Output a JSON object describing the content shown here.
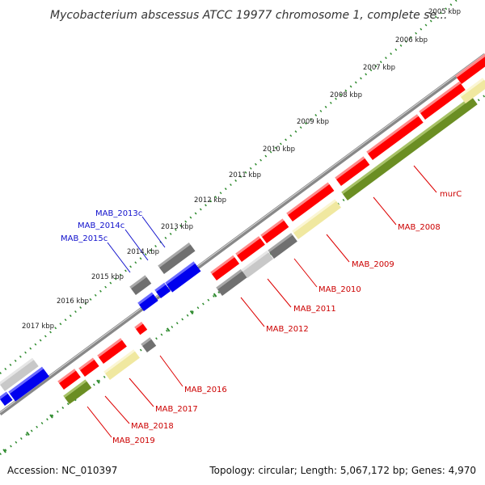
{
  "title": "Mycobacterium abscessus ATCC 19977 chromosome 1, complete se...",
  "accession_text": "Accession: NC_010397",
  "summary_text": "Topology: circular; Length: 5,067,172 bp; Genes: 4,970",
  "kbp_ticks": [
    {
      "label": "2005 kbp"
    },
    {
      "label": "2006 kbp"
    },
    {
      "label": "2007 kbp"
    },
    {
      "label": "2008 kbp"
    },
    {
      "label": "2009 kbp"
    },
    {
      "label": "2010 kbp"
    },
    {
      "label": "2011 kbp"
    },
    {
      "label": "2012 kbp"
    },
    {
      "label": "2013 kbp"
    },
    {
      "label": "2014 kbp"
    },
    {
      "label": "2015 kbp"
    },
    {
      "label": "2016 kbp"
    },
    {
      "label": "2017 kbp"
    }
  ],
  "colors": {
    "red": "#ff0000",
    "grey": "#707070",
    "light_grey": "#c8c8c8",
    "blue": "#0000ee",
    "yellow": "#f0e8a0",
    "olive": "#6b8e23",
    "backbone": "#888888",
    "tick_green": "#2e8b2e",
    "label_red": "#cc0000",
    "label_blue": "#1010cc"
  },
  "gene_labels": [
    {
      "text": "murC",
      "color": "label_red"
    },
    {
      "text": "MAB_2008",
      "color": "label_red"
    },
    {
      "text": "MAB_2009",
      "color": "label_red"
    },
    {
      "text": "MAB_2010",
      "color": "label_red"
    },
    {
      "text": "MAB_2011",
      "color": "label_red"
    },
    {
      "text": "MAB_2012",
      "color": "label_red"
    },
    {
      "text": "MAB_2016",
      "color": "label_red"
    },
    {
      "text": "MAB_2017",
      "color": "label_red"
    },
    {
      "text": "MAB_2018",
      "color": "label_red"
    },
    {
      "text": "MAB_2019",
      "color": "label_red"
    },
    {
      "text": "MAB_2013c",
      "color": "label_blue"
    },
    {
      "text": "MAB_2014c",
      "color": "label_blue"
    },
    {
      "text": "MAB_2015c",
      "color": "label_blue"
    }
  ]
}
